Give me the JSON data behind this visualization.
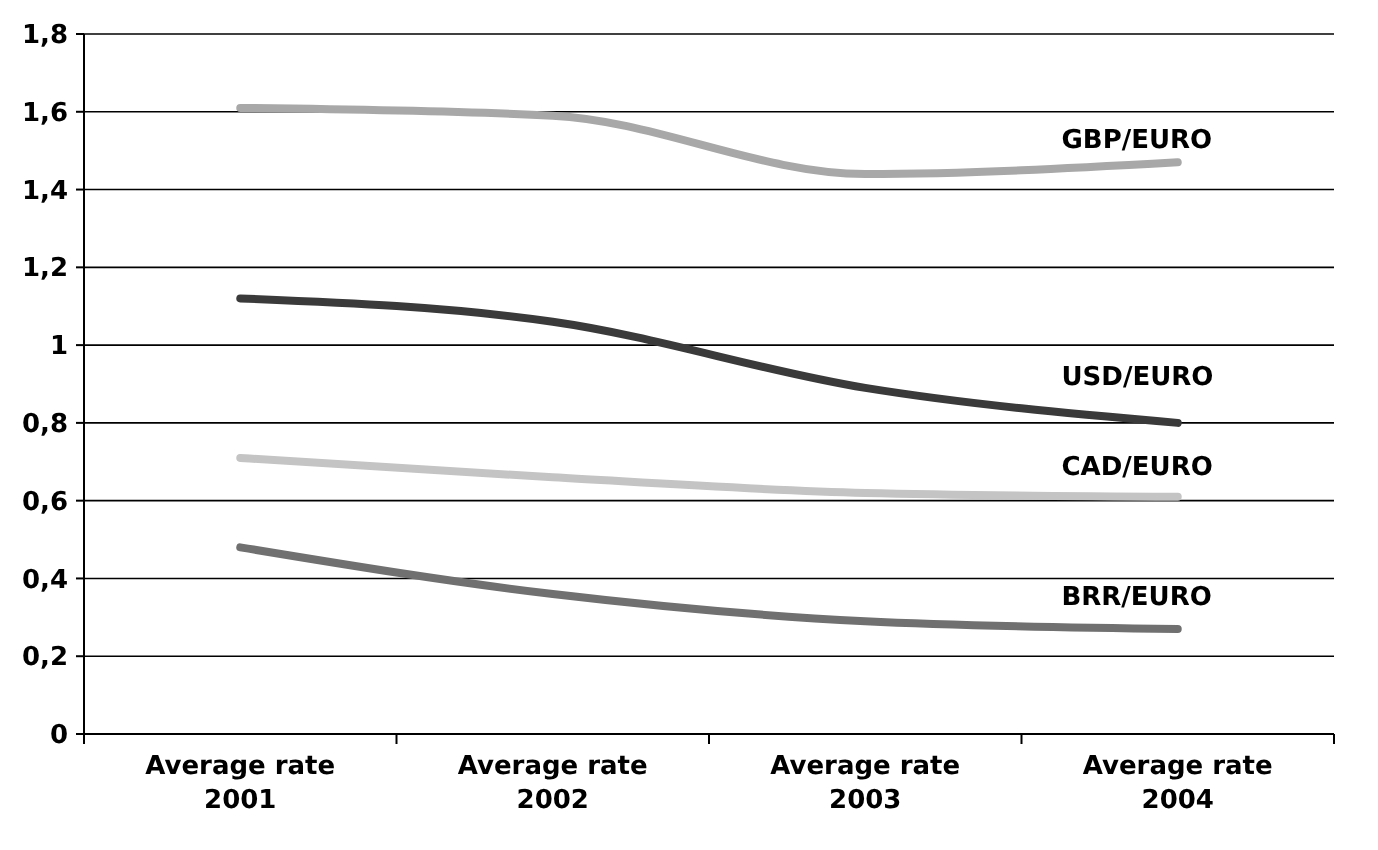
{
  "chart_data": {
    "type": "line",
    "categories": [
      "Average rate 2001",
      "Average rate 2002",
      "Average rate 2003",
      "Average rate 2004"
    ],
    "series": [
      {
        "name": "GBP/EURO",
        "color": "#a8a8a8",
        "values": [
          1.61,
          1.59,
          1.44,
          1.47
        ]
      },
      {
        "name": "USD/EURO",
        "color": "#3a3a3a",
        "values": [
          1.12,
          1.06,
          0.89,
          0.8
        ]
      },
      {
        "name": "CAD/EURO",
        "color": "#c4c4c4",
        "values": [
          0.71,
          0.66,
          0.62,
          0.61
        ]
      },
      {
        "name": "BRR/EURO",
        "color": "#707070",
        "values": [
          0.48,
          0.36,
          0.29,
          0.27
        ]
      }
    ],
    "ylim": [
      0,
      1.8
    ],
    "yticks": [
      0,
      {
        "value": 0.2,
        "label": "0,2"
      },
      {
        "value": 0.4,
        "label": "0,4"
      },
      {
        "value": 0.6,
        "label": "0,6"
      },
      {
        "value": 0.8,
        "label": "0,8"
      },
      1,
      {
        "value": 1.2,
        "label": "1,2"
      },
      {
        "value": 1.4,
        "label": "1,4"
      },
      {
        "value": 1.6,
        "label": "1,6"
      },
      {
        "value": 1.8,
        "label": "1,8"
      }
    ],
    "grid": "y",
    "marker": "none",
    "line_style": "solid"
  }
}
